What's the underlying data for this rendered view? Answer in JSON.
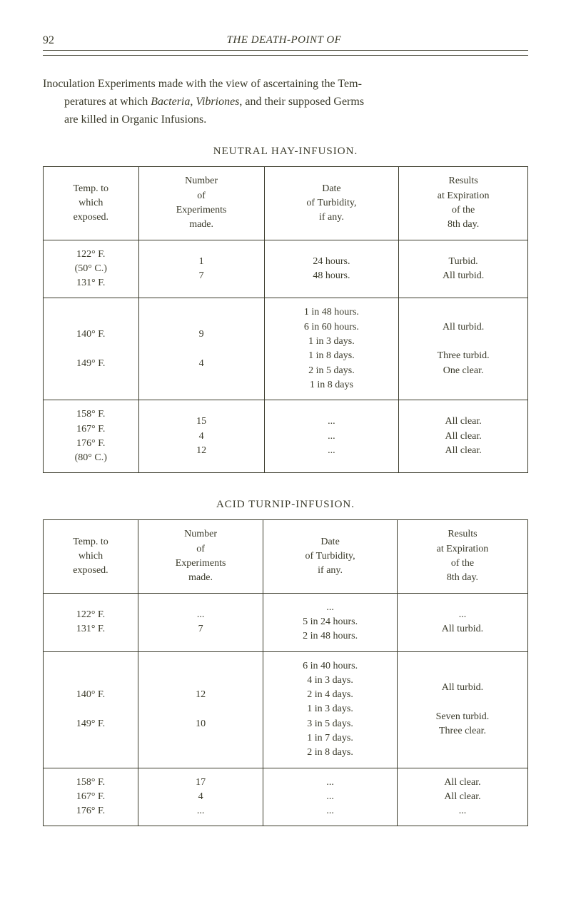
{
  "pageNumber": "92",
  "runningTitle": "THE DEATH-POINT OF",
  "intro": {
    "line1": "Inoculation Experiments made with the view of ascertaining the Tem-",
    "line2": "peratures at which ",
    "italic1": "Bacteria",
    "comma": ", ",
    "italic2": "Vibriones",
    "line2b": ", and their supposed Germs",
    "line3": "are killed in Organic Infusions."
  },
  "table1": {
    "title": "NEUTRAL HAY-INFUSION.",
    "headers": {
      "c1": "Temp. to\nwhich\nexposed.",
      "c2": "Number\nof\nExperiments\nmade.",
      "c3": "Date\nof Turbidity,\nif any.",
      "c4": "Results\nat Expiration\nof the\n8th day."
    },
    "rows": [
      {
        "temp": "122° F.\n(50° C.)\n131° F.",
        "num": "1\n7",
        "date": "24 hours.\n48 hours.",
        "result": "Turbid.\nAll turbid."
      },
      {
        "temp": "140° F.\n \n149° F.",
        "num": "9\n \n4",
        "date": "1 in 48 hours.\n6 in 60 hours.\n1 in 3 days.\n1 in 8 days.\n2 in 5 days.\n1 in 8 days",
        "result": "All turbid.\n \nThree turbid.\nOne clear."
      },
      {
        "temp": "158° F.\n167° F.\n176° F.\n(80° C.)",
        "num": "15\n4\n12",
        "date": "...\n...\n...",
        "result": "All clear.\nAll clear.\nAll clear."
      }
    ]
  },
  "table2": {
    "title": "ACID TURNIP-INFUSION.",
    "headers": {
      "c1": "Temp. to\nwhich\nexposed.",
      "c2": "Number\nof\nExperiments\nmade.",
      "c3": "Date\nof Turbidity,\nif any.",
      "c4": "Results\nat Expiration\nof the\n8th day."
    },
    "rows": [
      {
        "temp": "122° F.\n131° F.",
        "num": "...\n7",
        "date": "...\n5 in 24 hours.\n2 in 48 hours.",
        "result": "...\nAll turbid."
      },
      {
        "temp": "140° F.\n \n149° F.",
        "num": "12\n \n10",
        "date": "6 in 40 hours.\n4 in 3 days.\n2 in 4 days.\n1 in 3 days.\n3 in 5 days.\n1 in 7 days.\n2 in 8 days.",
        "result": "All turbid.\n \nSeven turbid.\nThree clear."
      },
      {
        "temp": "158° F.\n167° F.\n176° F.",
        "num": "17\n4\n...",
        "date": "...\n...\n...",
        "result": "All clear.\nAll clear.\n..."
      }
    ]
  }
}
